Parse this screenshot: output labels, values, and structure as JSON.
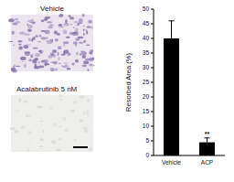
{
  "chart_data": {
    "type": "bar",
    "y_label": "Resorbed Area (%)",
    "categories": [
      "Vehicle",
      "ACP"
    ],
    "values": [
      40,
      4.5
    ],
    "errors": [
      6,
      1.5
    ],
    "annotations": [
      null,
      "**"
    ],
    "color": "#000000",
    "ylim": [
      0,
      50
    ],
    "yticks": [
      0,
      5,
      10,
      15,
      20,
      25,
      30,
      35,
      40,
      45,
      50
    ],
    "grid": false
  },
  "panels": [
    {
      "label": "Vehicle"
    },
    {
      "label": "Acalabrutinib 5 nM"
    }
  ]
}
